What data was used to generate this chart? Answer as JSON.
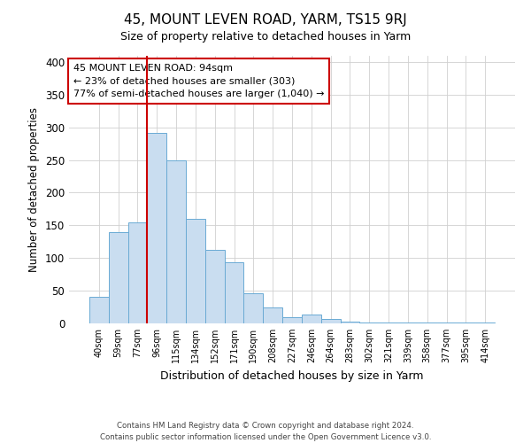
{
  "title": "45, MOUNT LEVEN ROAD, YARM, TS15 9RJ",
  "subtitle": "Size of property relative to detached houses in Yarm",
  "xlabel": "Distribution of detached houses by size in Yarm",
  "ylabel": "Number of detached properties",
  "bar_labels": [
    "40sqm",
    "59sqm",
    "77sqm",
    "96sqm",
    "115sqm",
    "134sqm",
    "152sqm",
    "171sqm",
    "190sqm",
    "208sqm",
    "227sqm",
    "246sqm",
    "264sqm",
    "283sqm",
    "302sqm",
    "321sqm",
    "339sqm",
    "358sqm",
    "377sqm",
    "395sqm",
    "414sqm"
  ],
  "bar_values": [
    40,
    140,
    155,
    292,
    250,
    160,
    113,
    93,
    46,
    25,
    10,
    13,
    7,
    3,
    2,
    2,
    1,
    1,
    1,
    1,
    1
  ],
  "bar_color": "#c9ddf0",
  "bar_edge_color": "#6aaad4",
  "vline_color": "#cc0000",
  "vline_x_index": 2.5,
  "ylim": [
    0,
    410
  ],
  "yticks": [
    0,
    50,
    100,
    150,
    200,
    250,
    300,
    350,
    400
  ],
  "annotation_title": "45 MOUNT LEVEN ROAD: 94sqm",
  "annotation_line1": "← 23% of detached houses are smaller (303)",
  "annotation_line2": "77% of semi-detached houses are larger (1,040) →",
  "annotation_box_facecolor": "#ffffff",
  "annotation_box_edgecolor": "#cc0000",
  "background_color": "#ffffff",
  "grid_color": "#d0d0d0",
  "footer1": "Contains HM Land Registry data © Crown copyright and database right 2024.",
  "footer2": "Contains public sector information licensed under the Open Government Licence v3.0."
}
